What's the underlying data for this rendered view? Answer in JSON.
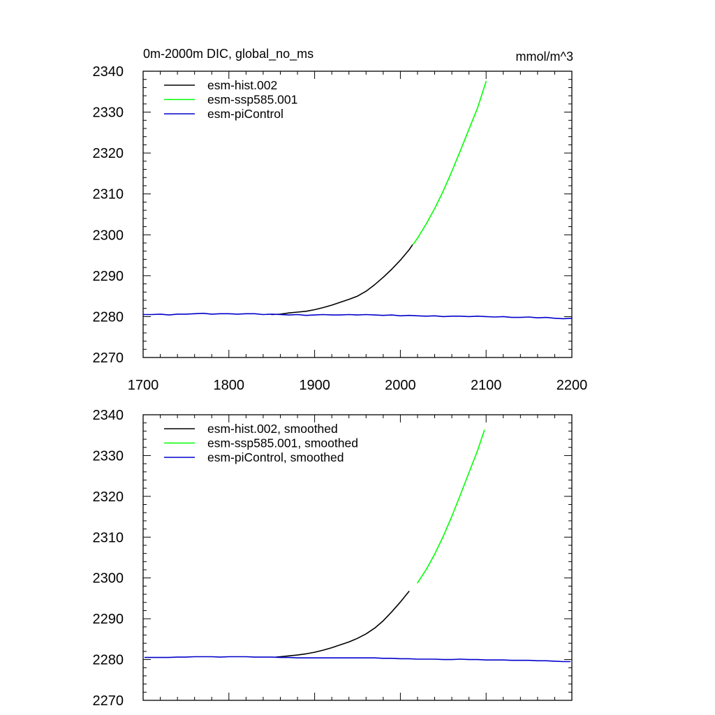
{
  "chart_data": [
    {
      "type": "line",
      "title_left": "0m-2000m DIC, global_no_ms",
      "title_right": "mmol/m^3",
      "xlim": [
        1700,
        2200
      ],
      "ylim": [
        2270,
        2340
      ],
      "x_ticks": [
        1700,
        1800,
        1900,
        2000,
        2100,
        2200
      ],
      "y_ticks": [
        2270,
        2280,
        2290,
        2300,
        2310,
        2320,
        2330,
        2340
      ],
      "show_x_tick_labels": true,
      "legend_position": "top-left",
      "series": [
        {
          "name": "esm-hist.002",
          "color": "#000000",
          "x": [
            1850,
            1860,
            1870,
            1880,
            1890,
            1900,
            1910,
            1920,
            1930,
            1940,
            1950,
            1960,
            1970,
            1980,
            1990,
            2000,
            2010,
            2014
          ],
          "y": [
            2280.5,
            2280.6,
            2280.9,
            2281.1,
            2281.3,
            2281.7,
            2282.2,
            2282.8,
            2283.5,
            2284.2,
            2285.0,
            2286.2,
            2287.8,
            2289.6,
            2291.6,
            2293.8,
            2296.3,
            2297.5
          ]
        },
        {
          "name": "esm-ssp585.001",
          "color": "#00ff00",
          "x": [
            2015,
            2020,
            2030,
            2040,
            2050,
            2060,
            2070,
            2080,
            2090,
            2100
          ],
          "y": [
            2297.7,
            2299.2,
            2302.6,
            2306.4,
            2310.7,
            2315.5,
            2320.6,
            2325.8,
            2331.0,
            2337.5
          ]
        },
        {
          "name": "esm-piControl",
          "color": "#0000cc",
          "x": [
            1700,
            1710,
            1720,
            1730,
            1740,
            1750,
            1760,
            1770,
            1780,
            1790,
            1800,
            1810,
            1820,
            1830,
            1840,
            1850,
            1860,
            1870,
            1880,
            1890,
            1900,
            1910,
            1920,
            1930,
            1940,
            1950,
            1960,
            1970,
            1980,
            1990,
            2000,
            2010,
            2020,
            2030,
            2040,
            2050,
            2060,
            2070,
            2080,
            2090,
            2100,
            2110,
            2120,
            2130,
            2140,
            2150,
            2160,
            2170,
            2180,
            2190,
            2200
          ],
          "y": [
            2280.5,
            2280.5,
            2280.6,
            2280.4,
            2280.6,
            2280.6,
            2280.7,
            2280.8,
            2280.6,
            2280.7,
            2280.7,
            2280.6,
            2280.7,
            2280.7,
            2280.5,
            2280.6,
            2280.5,
            2280.4,
            2280.5,
            2280.3,
            2280.4,
            2280.5,
            2280.4,
            2280.4,
            2280.5,
            2280.4,
            2280.5,
            2280.4,
            2280.3,
            2280.4,
            2280.2,
            2280.3,
            2280.2,
            2280.1,
            2280.2,
            2280.0,
            2280.1,
            2280.1,
            2280.0,
            2280.1,
            2280.0,
            2279.9,
            2280.0,
            2279.8,
            2279.8,
            2279.9,
            2279.7,
            2279.8,
            2279.6,
            2279.5,
            2279.6
          ]
        }
      ]
    },
    {
      "type": "line",
      "title_left": "",
      "title_right": "",
      "xlim": [
        1700,
        2200
      ],
      "ylim": [
        2270,
        2340
      ],
      "x_ticks": [
        1700,
        1800,
        1900,
        2000,
        2100,
        2200
      ],
      "y_ticks": [
        2270,
        2280,
        2290,
        2300,
        2310,
        2320,
        2330,
        2340
      ],
      "show_x_tick_labels": false,
      "legend_position": "top-left",
      "series": [
        {
          "name": "esm-hist.002, smoothed",
          "color": "#000000",
          "x": [
            1855,
            1860,
            1870,
            1880,
            1890,
            1900,
            1910,
            1920,
            1930,
            1940,
            1950,
            1960,
            1970,
            1980,
            1990,
            2000,
            2010
          ],
          "y": [
            2280.6,
            2280.7,
            2280.9,
            2281.1,
            2281.4,
            2281.8,
            2282.3,
            2282.9,
            2283.6,
            2284.3,
            2285.2,
            2286.3,
            2287.7,
            2289.5,
            2291.7,
            2294.1,
            2296.7
          ]
        },
        {
          "name": "esm-ssp585.001, smoothed",
          "color": "#00ff00",
          "x": [
            2020,
            2030,
            2040,
            2050,
            2060,
            2070,
            2080,
            2090,
            2098
          ],
          "y": [
            2298.8,
            2302.0,
            2305.8,
            2310.2,
            2315.1,
            2320.4,
            2325.8,
            2331.2,
            2336.2
          ]
        },
        {
          "name": "esm-piControl, smoothed",
          "color": "#0000cc",
          "x": [
            1702,
            1710,
            1720,
            1730,
            1740,
            1750,
            1760,
            1770,
            1780,
            1790,
            1800,
            1810,
            1820,
            1830,
            1840,
            1850,
            1860,
            1870,
            1880,
            1890,
            1900,
            1910,
            1920,
            1930,
            1940,
            1950,
            1960,
            1970,
            1980,
            1990,
            2000,
            2010,
            2020,
            2030,
            2040,
            2050,
            2060,
            2070,
            2080,
            2090,
            2100,
            2110,
            2120,
            2130,
            2140,
            2150,
            2160,
            2170,
            2180,
            2190,
            2198
          ],
          "y": [
            2280.5,
            2280.5,
            2280.5,
            2280.5,
            2280.6,
            2280.6,
            2280.7,
            2280.7,
            2280.7,
            2280.6,
            2280.7,
            2280.7,
            2280.7,
            2280.6,
            2280.6,
            2280.6,
            2280.5,
            2280.5,
            2280.4,
            2280.4,
            2280.4,
            2280.4,
            2280.4,
            2280.4,
            2280.4,
            2280.4,
            2280.4,
            2280.4,
            2280.3,
            2280.3,
            2280.2,
            2280.2,
            2280.1,
            2280.1,
            2280.1,
            2280.0,
            2280.0,
            2280.1,
            2280.0,
            2280.0,
            2279.9,
            2279.9,
            2279.9,
            2279.8,
            2279.8,
            2279.8,
            2279.7,
            2279.7,
            2279.6,
            2279.5,
            2279.5
          ]
        }
      ]
    }
  ]
}
